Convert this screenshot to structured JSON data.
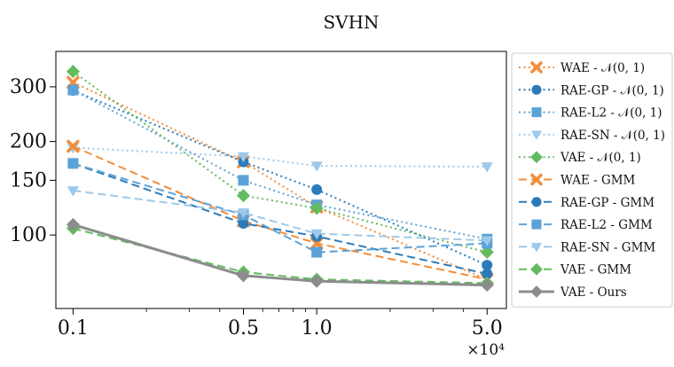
{
  "chart_data": {
    "type": "line",
    "title": "SVHN",
    "xlabel": "",
    "ylabel": "",
    "x_scale": "log",
    "y_scale": "log",
    "x_multiplier_label": "×10⁴",
    "x": [
      0.1,
      0.5,
      1.0,
      5.0
    ],
    "x_tick_labels": [
      "0.1",
      "0.5",
      "1.0",
      "5.0"
    ],
    "y_tick_values": [
      100,
      150,
      200,
      300
    ],
    "y_tick_labels": [
      "100",
      "150",
      "200",
      "300"
    ],
    "xlim": [
      0.085,
      6.0
    ],
    "ylim": [
      58,
      390
    ],
    "grid": false,
    "legend_position": "outside-right",
    "series": [
      {
        "name": "WAE - 𝒩(0, 1)",
        "color": "#f28e3b",
        "dash": "dotted",
        "marker": "x",
        "values": [
          310,
          172,
          123,
          72
        ]
      },
      {
        "name": "RAE-GP - 𝒩(0, 1)",
        "color": "#2b7bba",
        "dash": "dotted",
        "marker": "circle",
        "values": [
          292,
          172,
          140,
          80
        ]
      },
      {
        "name": "RAE-L2 - 𝒩(0, 1)",
        "color": "#5ba3d6",
        "dash": "dotted",
        "marker": "square",
        "values": [
          293,
          150,
          125,
          97
        ]
      },
      {
        "name": "RAE-SN - 𝒩(0, 1)",
        "color": "#9dc9ea",
        "dash": "dotted",
        "marker": "triangle-down",
        "values": [
          191,
          179,
          167,
          166
        ]
      },
      {
        "name": "VAE - 𝒩(0, 1)",
        "color": "#63bb5f",
        "dash": "dotted",
        "marker": "diamond",
        "values": [
          336,
          134,
          122,
          88
        ]
      },
      {
        "name": "WAE - GMM",
        "color": "#f28e3b",
        "dash": "dashed",
        "marker": "x",
        "values": [
          193,
          111,
          94,
          72
        ]
      },
      {
        "name": "RAE-GP - GMM",
        "color": "#2b7bba",
        "dash": "dashed",
        "marker": "circle",
        "values": [
          170,
          109,
          99,
          75
        ]
      },
      {
        "name": "RAE-L2 - GMM",
        "color": "#5ba3d6",
        "dash": "dashed",
        "marker": "square",
        "values": [
          170,
          116,
          88,
          94
        ]
      },
      {
        "name": "RAE-SN - GMM",
        "color": "#9dc9ea",
        "dash": "dashed",
        "marker": "triangle-down",
        "values": [
          139,
          118,
          101,
          96
        ]
      },
      {
        "name": "VAE - GMM",
        "color": "#63bb5f",
        "dash": "dashed",
        "marker": "diamond",
        "values": [
          105,
          76,
          72,
          70
        ]
      },
      {
        "name": "VAE - Ours",
        "color": "#8c8c8c",
        "dash": "solid",
        "marker": "diamond",
        "values": [
          108,
          74,
          71,
          69
        ]
      }
    ]
  }
}
